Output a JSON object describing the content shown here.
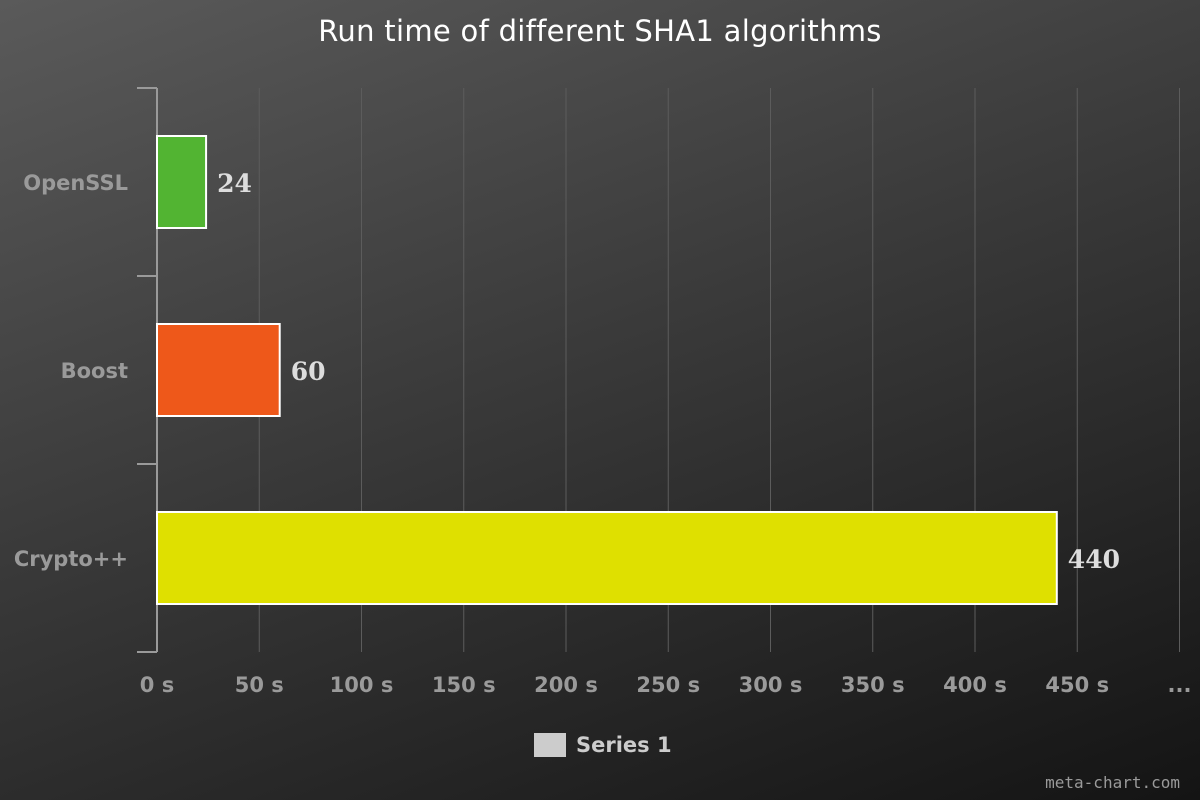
{
  "chart_data": {
    "type": "bar",
    "orientation": "horizontal",
    "title": "Run time of different SHA1 algorithms",
    "xlabel": "",
    "ylabel": "",
    "categories": [
      "OpenSSL",
      "Boost",
      "Crypto++"
    ],
    "series": [
      {
        "name": "Series 1",
        "values": [
          24,
          60,
          440
        ],
        "colors": [
          "#52b432",
          "#ee581a",
          "#dfe000"
        ]
      }
    ],
    "data_labels": [
      "24",
      "60",
      "440"
    ],
    "x_ticks": [
      "0 s",
      "50 s",
      "100 s",
      "150 s",
      "200 s",
      "250 s",
      "300 s",
      "350 s",
      "400 s",
      "450 s",
      "..."
    ],
    "xlim": [
      0,
      500
    ],
    "grid": true,
    "legend": "bottom-center"
  },
  "watermark": "meta-chart.com"
}
